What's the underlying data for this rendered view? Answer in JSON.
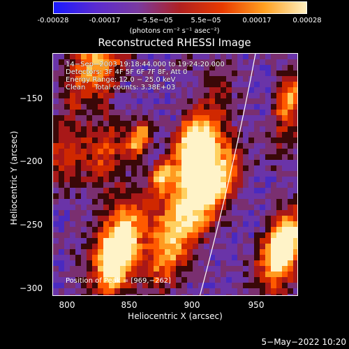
{
  "colorbar": {
    "ticks": [
      "-0.00028",
      "-0.00017",
      "−5.5e−05",
      "5.5e−05",
      "0.00017",
      "0.00028"
    ],
    "units": "(photons cm⁻² s⁻¹ asec⁻²)",
    "colors": [
      "#1a1aff",
      "#5a2bd0",
      "#7a3aa0",
      "#b02020",
      "#e83a00",
      "#ffa020",
      "#fff0c0"
    ]
  },
  "plot": {
    "title": "Reconstructed RHESSI Image",
    "info_lines": [
      "14−Sep−2003 19:18:44.000 to 19:24:20.000",
      "Detectors: 3F 4F 5F 6F 7F 8F, Att 0",
      "Energy Range: 12.0 − 25.0 keV",
      "Clean    Total counts: 3.38E+03"
    ],
    "peak_label": "Position of Peak = [969,−262]",
    "xlabel": "Heliocentric X (arcsec)",
    "ylabel": "Heliocentric Y (arcsec)",
    "xticks": [
      "800",
      "850",
      "900",
      "950"
    ],
    "yticks": [
      "−150",
      "−200",
      "−250",
      "−300"
    ]
  },
  "footer": {
    "date": "5−May−2022 10:20"
  }
}
